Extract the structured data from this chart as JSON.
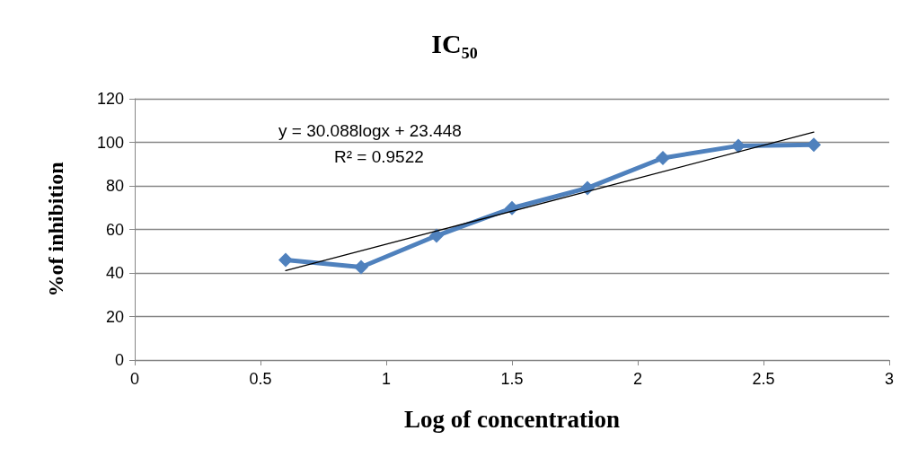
{
  "chart_data": {
    "type": "line",
    "title": "IC₅₀",
    "xlabel": "Log of concentration",
    "ylabel": "%of inhibition",
    "annotations": [
      "y = 30.088logx + 23.448",
      "R² = 0.9522"
    ],
    "x": [
      0.6,
      0.9,
      1.2,
      1.5,
      1.8,
      2.1,
      2.4,
      2.7
    ],
    "series": [
      {
        "color": "#4f81bd",
        "values": [
          46.0,
          42.7,
          57.1,
          69.8,
          79.0,
          92.8,
          98.4,
          98.9
        ],
        "marker": "diamond"
      },
      {
        "type": "line",
        "color": "#000000",
        "x": [
          0.6,
          2.7
        ],
        "values": [
          41.1,
          104.7
        ],
        "marker": "none"
      }
    ],
    "xlim": [
      0,
      3
    ],
    "xticks": [
      0,
      0.5,
      1,
      1.5,
      2,
      2.5,
      3
    ],
    "ylim": [
      0,
      120
    ],
    "yticks": [
      0,
      20,
      40,
      60,
      80,
      100,
      120
    ],
    "grid": "y"
  }
}
